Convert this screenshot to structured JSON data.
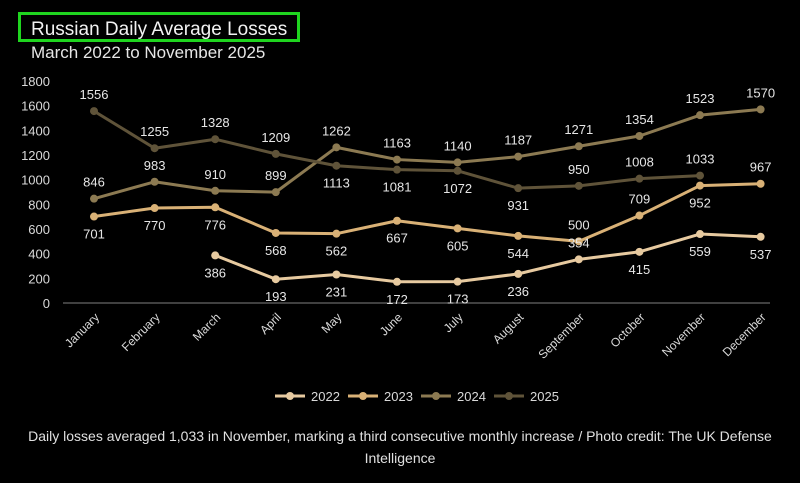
{
  "caption": "Daily losses averaged 1,033 in November, marking a third consecutive monthly increase / Photo credit: The UK Defense Intelligence",
  "chart_data": {
    "type": "line",
    "title": "Russian Daily Average Losses",
    "subtitle": "March 2022 to November 2025",
    "categories": [
      "January",
      "February",
      "March",
      "April",
      "May",
      "June",
      "July",
      "August",
      "September",
      "October",
      "November",
      "December"
    ],
    "ylim": [
      0,
      1800
    ],
    "yticks": [
      "0",
      "200",
      "400",
      "600",
      "800",
      "1000",
      "1200",
      "1400",
      "1600",
      "1800"
    ],
    "grid": false,
    "legend_position": "bottom",
    "series": [
      {
        "name": "2022",
        "color": "#e7caa0",
        "values": [
          null,
          null,
          386,
          193,
          231,
          172,
          173,
          236,
          354,
          415,
          559,
          537
        ]
      },
      {
        "name": "2023",
        "color": "#d9b176",
        "values": [
          701,
          770,
          776,
          568,
          562,
          667,
          605,
          544,
          500,
          709,
          952,
          967
        ]
      },
      {
        "name": "2024",
        "color": "#8c7a52",
        "values": [
          846,
          983,
          910,
          899,
          1262,
          1163,
          1140,
          1187,
          1271,
          1354,
          1523,
          1570
        ]
      },
      {
        "name": "2025",
        "color": "#5f5339",
        "values": [
          1556,
          1255,
          1328,
          1209,
          1113,
          1081,
          1072,
          931,
          950,
          1008,
          1033,
          null
        ]
      }
    ],
    "labels": [
      {
        "series": 0,
        "values": [
          "",
          "",
          "386",
          "193",
          "231",
          "172",
          "173",
          "236",
          "354",
          "415",
          "559",
          "537"
        ]
      },
      {
        "series": 1,
        "values": [
          "701",
          "770",
          "776",
          "568",
          "562",
          "667",
          "605",
          "544",
          "500",
          "709",
          "952",
          "967"
        ]
      },
      {
        "series": 2,
        "values": [
          "846",
          "983",
          "910",
          "899",
          "1262",
          "1163",
          "1140",
          "1187",
          "1271",
          "1354",
          "1523",
          "1570"
        ]
      },
      {
        "series": 3,
        "values": [
          "1556",
          "1255",
          "1328",
          "1209",
          "1113",
          "1081",
          "1072",
          "931",
          "950",
          "1008",
          "1033",
          ""
        ]
      }
    ]
  }
}
